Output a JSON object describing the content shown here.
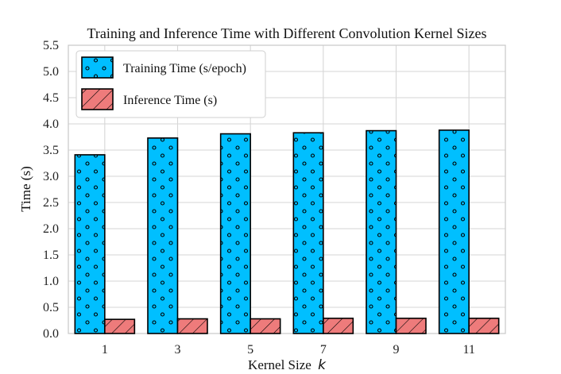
{
  "chart_data": {
    "type": "bar",
    "title": "Training and Inference Time with Different Convolution Kernel Sizes",
    "xlabel": "Kernel Size",
    "xlabel_var": "k",
    "ylabel": "Time (s)",
    "ylim": [
      0,
      5.5
    ],
    "yticks": [
      "0.0",
      "0.5",
      "1.0",
      "1.5",
      "2.0",
      "2.5",
      "3.0",
      "3.5",
      "4.0",
      "4.5",
      "5.0",
      "5.5"
    ],
    "categories": [
      "1",
      "3",
      "5",
      "7",
      "9",
      "11"
    ],
    "grid": true,
    "legend_position": "top-left",
    "series": [
      {
        "name": "Training Time (s/epoch)",
        "values": [
          3.41,
          3.73,
          3.81,
          3.83,
          3.87,
          3.88
        ],
        "color": "#00bfff",
        "pattern": "dots"
      },
      {
        "name": "Inference Time (s)",
        "values": [
          0.27,
          0.28,
          0.28,
          0.29,
          0.29,
          0.29
        ],
        "color": "#ee7b7b",
        "pattern": "hatch"
      }
    ]
  }
}
